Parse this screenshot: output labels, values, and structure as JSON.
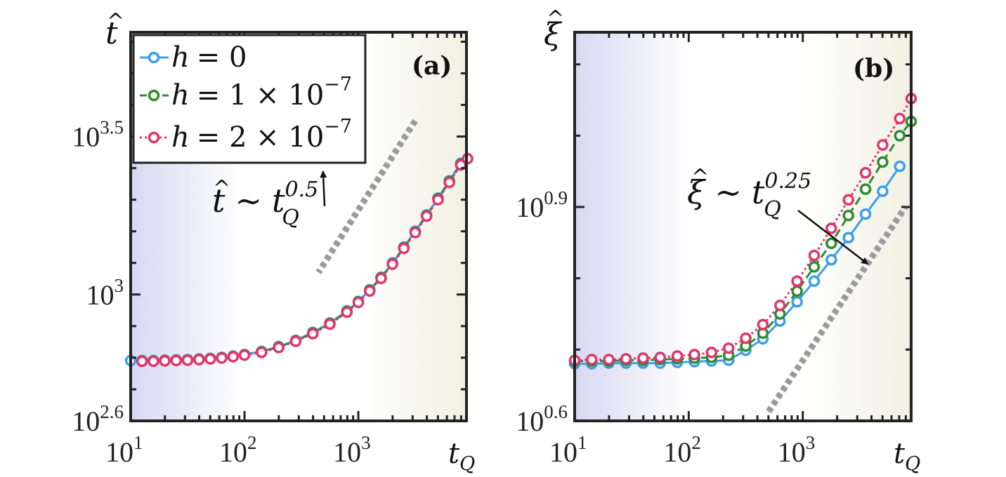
{
  "colors": {
    "h0": "#3d9ee8",
    "h1": "#2e8b2e",
    "h2": "#e0356e",
    "slow_band": "#d8d8f2",
    "fast_band": "#f0f0e2",
    "guide": "#9a9a9a"
  },
  "chart_data": [
    {
      "type": "line",
      "panel": "(a)",
      "xscale": "log",
      "yscale": "log",
      "xlim_log10": [
        1,
        3.95
      ],
      "ylim_log10": [
        2.6,
        3.83
      ],
      "xlabel": {
        "base": "t",
        "sub": "Q"
      },
      "ylabel": {
        "hat_symbol": "t"
      },
      "xticks": [
        {
          "log10": 1,
          "base": "10",
          "exp": "1"
        },
        {
          "log10": 2,
          "base": "10",
          "exp": "2"
        },
        {
          "log10": 3,
          "base": "10",
          "exp": "3"
        }
      ],
      "yticks": [
        {
          "log10": 2.6,
          "base": "10",
          "exp": "2.6"
        },
        {
          "log10": 3.0,
          "base": "10",
          "exp": "3"
        },
        {
          "log10": 3.5,
          "base": "10",
          "exp": "3.5"
        }
      ],
      "regions": [
        {
          "name": "slow",
          "x_log10": [
            1,
            2
          ]
        },
        {
          "name": "fast",
          "x_log10": [
            3,
            3.95
          ]
        }
      ],
      "guide": {
        "x_log10": [
          3.5,
          2.65
        ],
        "y_log10": [
          3.55,
          3.07
        ],
        "exponent": "0.5"
      },
      "annotation": {
        "hat_symbol": "t",
        "relation": "∼",
        "base": "t",
        "sub": "Q",
        "exp": "0.5",
        "arrow_to_log10": [
          2.69,
          3.39
        ]
      },
      "legend": {
        "entries": [
          {
            "key": "h0",
            "label_lhs": "h",
            "label_rhs": "= 0",
            "exp": ""
          },
          {
            "key": "h1",
            "label_lhs": "h",
            "label_rhs": "= 1 × 10",
            "exp": "−7"
          },
          {
            "key": "h2",
            "label_lhs": "h",
            "label_rhs": "= 2 × 10",
            "exp": "−7"
          }
        ]
      },
      "series": [
        {
          "name": "h = 0",
          "key": "h0",
          "dash": "solid",
          "x_log10": [
            1.0,
            1.1,
            1.2,
            1.3,
            1.4,
            1.5,
            1.6,
            1.7,
            1.8,
            1.9,
            2.0,
            2.15,
            2.3,
            2.45,
            2.6,
            2.75,
            2.9,
            3.0,
            3.1,
            3.2,
            3.3,
            3.4,
            3.5,
            3.6,
            3.7,
            3.8,
            3.9
          ],
          "y_log10": [
            2.791,
            2.791,
            2.791,
            2.792,
            2.793,
            2.794,
            2.796,
            2.798,
            2.801,
            2.805,
            2.81,
            2.82,
            2.835,
            2.855,
            2.88,
            2.91,
            2.948,
            2.978,
            3.015,
            3.055,
            3.1,
            3.15,
            3.2,
            3.252,
            3.305,
            3.36,
            3.415
          ]
        },
        {
          "name": "h = 1 × 10^-7",
          "key": "h1",
          "dash": "dashed",
          "x_log10": [
            1.1,
            1.2,
            1.3,
            1.4,
            1.5,
            1.6,
            1.7,
            1.8,
            1.9,
            2.0,
            2.15,
            2.3,
            2.45,
            2.6,
            2.75,
            2.9,
            3.0,
            3.1,
            3.2,
            3.3,
            3.4,
            3.5,
            3.6,
            3.7,
            3.8,
            3.9
          ],
          "y_log10": [
            2.79,
            2.79,
            2.791,
            2.792,
            2.793,
            2.795,
            2.797,
            2.8,
            2.804,
            2.809,
            2.818,
            2.834,
            2.853,
            2.878,
            2.908,
            2.946,
            2.977,
            3.013,
            3.053,
            3.098,
            3.148,
            3.198,
            3.25,
            3.303,
            3.358,
            3.413
          ]
        },
        {
          "name": "h = 2 × 10^-7",
          "key": "h2",
          "dash": "dotted",
          "x_log10": [
            1.1,
            1.2,
            1.3,
            1.4,
            1.5,
            1.6,
            1.7,
            1.8,
            1.9,
            2.0,
            2.15,
            2.3,
            2.45,
            2.6,
            2.75,
            2.9,
            3.0,
            3.1,
            3.2,
            3.3,
            3.4,
            3.5,
            3.6,
            3.7,
            3.8,
            3.9,
            3.96
          ],
          "y_log10": [
            2.789,
            2.789,
            2.79,
            2.791,
            2.792,
            2.794,
            2.796,
            2.799,
            2.803,
            2.808,
            2.817,
            2.832,
            2.852,
            2.876,
            2.906,
            2.944,
            2.975,
            3.011,
            3.051,
            3.096,
            3.146,
            3.196,
            3.248,
            3.3,
            3.355,
            3.41,
            3.43
          ]
        }
      ]
    },
    {
      "type": "line",
      "panel": "(b)",
      "xscale": "log",
      "yscale": "log",
      "xlim_log10": [
        1,
        3.95
      ],
      "ylim_log10": [
        0.6,
        1.145
      ],
      "xlabel": {
        "base": "t",
        "sub": "Q"
      },
      "ylabel": {
        "hat_symbol": "ξ"
      },
      "xticks": [
        {
          "log10": 1,
          "base": "10",
          "exp": "1"
        },
        {
          "log10": 2,
          "base": "10",
          "exp": "2"
        },
        {
          "log10": 3,
          "base": "10",
          "exp": "3"
        }
      ],
      "yticks": [
        {
          "log10": 0.6,
          "base": "10",
          "exp": "0.6"
        },
        {
          "log10": 0.9,
          "base": "10",
          "exp": "0.9"
        }
      ],
      "regions": [
        {
          "name": "slow",
          "x_log10": [
            1,
            2
          ]
        },
        {
          "name": "fast",
          "x_log10": [
            3,
            3.95
          ]
        }
      ],
      "guide": {
        "x_log10": [
          2.7,
          3.9
        ],
        "y_log10": [
          0.613,
          0.9
        ],
        "exponent": "0.25"
      },
      "annotation": {
        "hat_symbol": "ξ",
        "relation": "∼",
        "base": "t",
        "sub": "Q",
        "exp": "0.25",
        "arrow_to_log10": [
          3.57,
          0.82
        ]
      },
      "series": [
        {
          "name": "h = 0",
          "key": "h0",
          "dash": "solid",
          "x_log10": [
            1.0,
            1.15,
            1.3,
            1.45,
            1.6,
            1.75,
            1.9,
            2.05,
            2.2,
            2.35,
            2.5,
            2.65,
            2.8,
            2.95,
            3.1,
            3.25,
            3.4,
            3.55,
            3.7,
            3.85
          ],
          "y_log10": [
            0.68,
            0.68,
            0.681,
            0.681,
            0.681,
            0.681,
            0.682,
            0.683,
            0.684,
            0.685,
            0.699,
            0.715,
            0.74,
            0.767,
            0.796,
            0.826,
            0.857,
            0.89,
            0.922,
            0.957
          ]
        },
        {
          "name": "h = 1 × 10^-7",
          "key": "h1",
          "dash": "dashed",
          "x_log10": [
            1.0,
            1.15,
            1.3,
            1.45,
            1.6,
            1.75,
            1.9,
            2.05,
            2.2,
            2.35,
            2.5,
            2.65,
            2.8,
            2.95,
            3.1,
            3.25,
            3.4,
            3.55,
            3.7,
            3.85,
            3.95
          ],
          "y_log10": [
            0.684,
            0.684,
            0.684,
            0.685,
            0.685,
            0.686,
            0.687,
            0.688,
            0.689,
            0.692,
            0.705,
            0.723,
            0.75,
            0.782,
            0.816,
            0.849,
            0.888,
            0.925,
            0.963,
            1.0,
            1.02
          ]
        },
        {
          "name": "h = 2 × 10^-7",
          "key": "h2",
          "dash": "dotted",
          "x_log10": [
            1.0,
            1.15,
            1.3,
            1.45,
            1.6,
            1.75,
            1.9,
            2.05,
            2.2,
            2.35,
            2.5,
            2.65,
            2.8,
            2.95,
            3.1,
            3.25,
            3.4,
            3.55,
            3.7,
            3.85,
            3.95
          ],
          "y_log10": [
            0.685,
            0.686,
            0.686,
            0.687,
            0.688,
            0.689,
            0.691,
            0.693,
            0.696,
            0.702,
            0.716,
            0.735,
            0.762,
            0.796,
            0.832,
            0.87,
            0.91,
            0.948,
            0.987,
            1.024,
            1.052
          ]
        }
      ]
    }
  ]
}
